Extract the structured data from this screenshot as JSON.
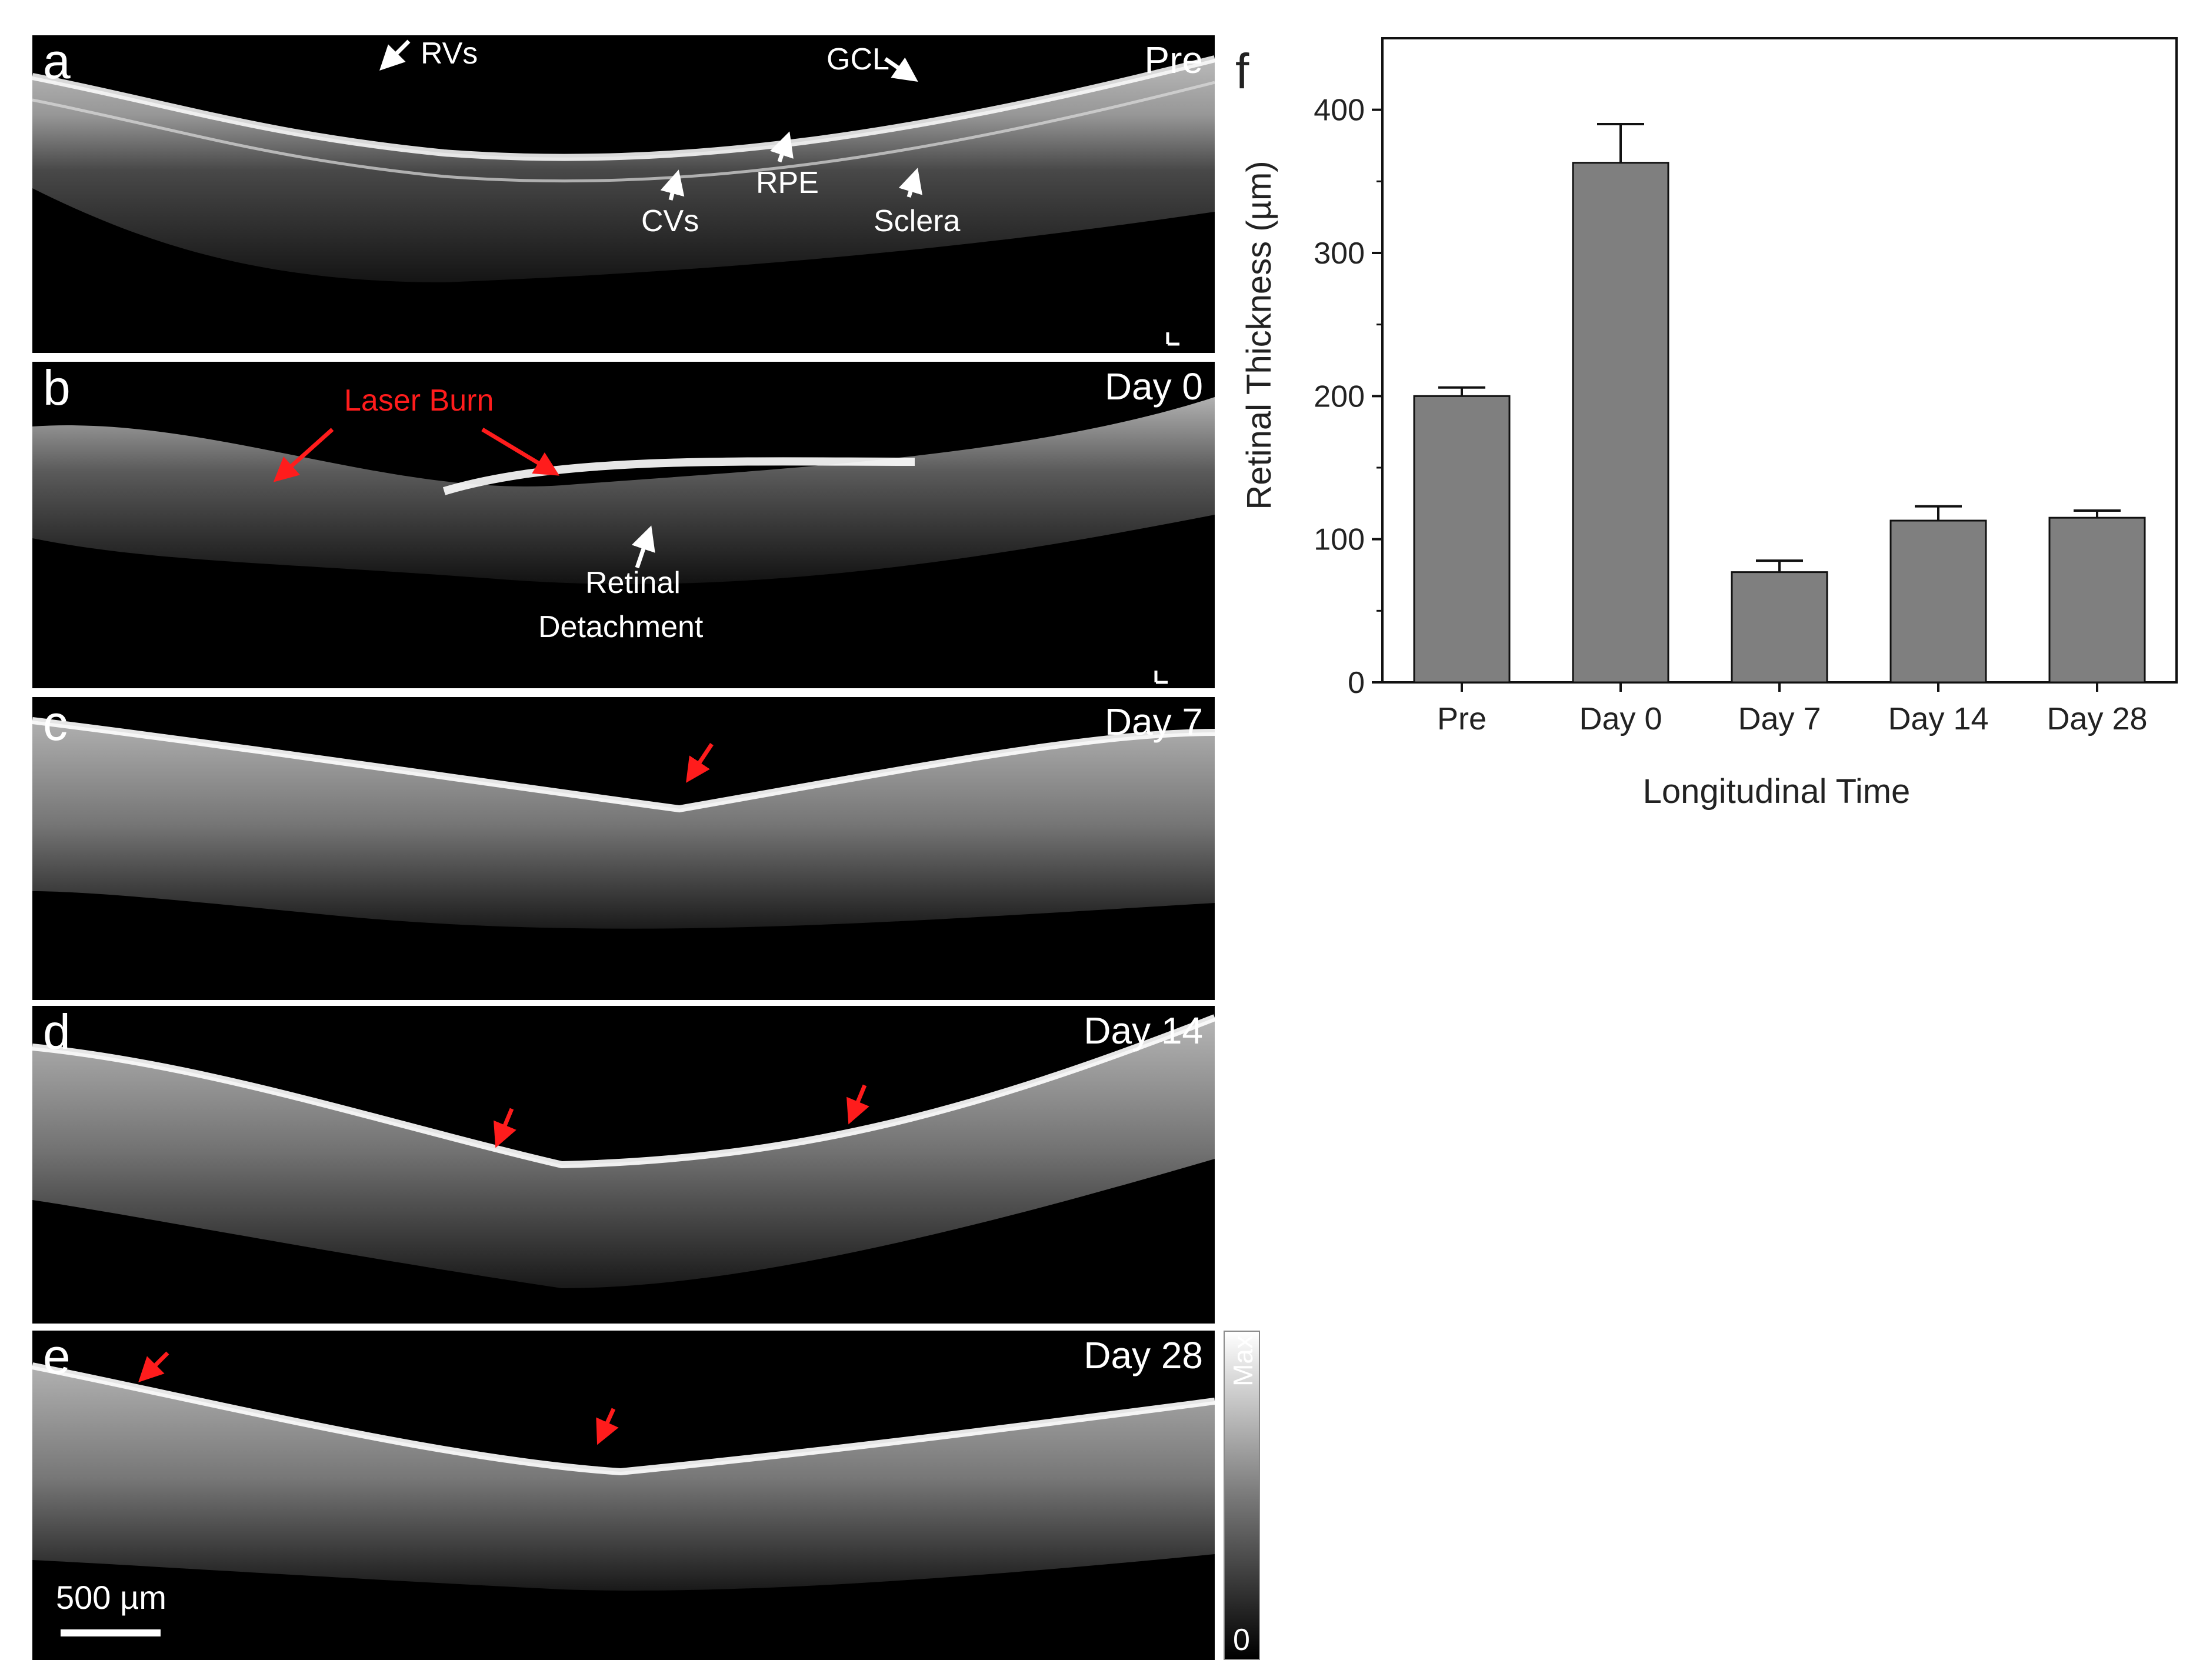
{
  "panels": [
    {
      "letter": "a",
      "label": "Pre",
      "annotations": [
        "RVs",
        "GCL",
        "RPE",
        "CVs",
        "Sclera"
      ]
    },
    {
      "letter": "b",
      "label": "Day 0",
      "annotations": [
        "Laser Burn",
        "Retinal",
        "Detachment"
      ]
    },
    {
      "letter": "c",
      "label": "Day 7"
    },
    {
      "letter": "d",
      "label": "Day 14"
    },
    {
      "letter": "e",
      "label": "Day 28",
      "scale_bar": "500 µm"
    }
  ],
  "colorbar": {
    "max_label": "Max",
    "min_label": "0"
  },
  "colors": {
    "annotation_red": "#ff1c1c",
    "bar_fill": "#7f7f7f",
    "bar_stroke": "#111111"
  },
  "chart_letter": "f",
  "chart_data": {
    "type": "bar",
    "categories": [
      "Pre",
      "Day 0",
      "Day 7",
      "Day 14",
      "Day 28"
    ],
    "values": [
      200,
      363,
      77,
      113,
      115
    ],
    "errors": [
      6,
      27,
      8,
      10,
      5
    ],
    "xlabel": "Longitudinal Time",
    "ylabel": "Retinal Thickness (µm)",
    "ylim": [
      0,
      450
    ],
    "yticks": [
      0,
      100,
      200,
      300,
      400
    ],
    "grid": false
  }
}
